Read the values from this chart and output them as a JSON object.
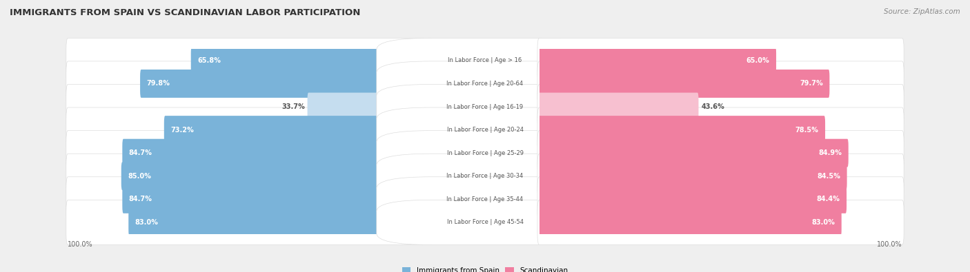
{
  "title": "IMMIGRANTS FROM SPAIN VS SCANDINAVIAN LABOR PARTICIPATION",
  "source": "Source: ZipAtlas.com",
  "categories": [
    "In Labor Force | Age > 16",
    "In Labor Force | Age 20-64",
    "In Labor Force | Age 16-19",
    "In Labor Force | Age 20-24",
    "In Labor Force | Age 25-29",
    "In Labor Force | Age 30-34",
    "In Labor Force | Age 35-44",
    "In Labor Force | Age 45-54"
  ],
  "spain_values": [
    65.8,
    79.8,
    33.7,
    73.2,
    84.7,
    85.0,
    84.7,
    83.0
  ],
  "scandinavian_values": [
    65.0,
    79.7,
    43.6,
    78.5,
    84.9,
    84.5,
    84.4,
    83.0
  ],
  "spain_color_strong": "#7ab3d9",
  "spain_color_light": "#c5ddef",
  "scandinavian_color_strong": "#f07fa0",
  "scandinavian_color_light": "#f7c0d0",
  "background_color": "#efefef",
  "row_bg_color": "#ffffff",
  "row_alt_bg_color": "#f7f7f7",
  "label_text_color": "#555555",
  "value_text_color_inside": "#ffffff",
  "value_text_color_outside": "#555555",
  "max_val": 100.0,
  "legend_spain": "Immigrants from Spain",
  "legend_scandinavian": "Scandinavian",
  "threshold": 55.0
}
